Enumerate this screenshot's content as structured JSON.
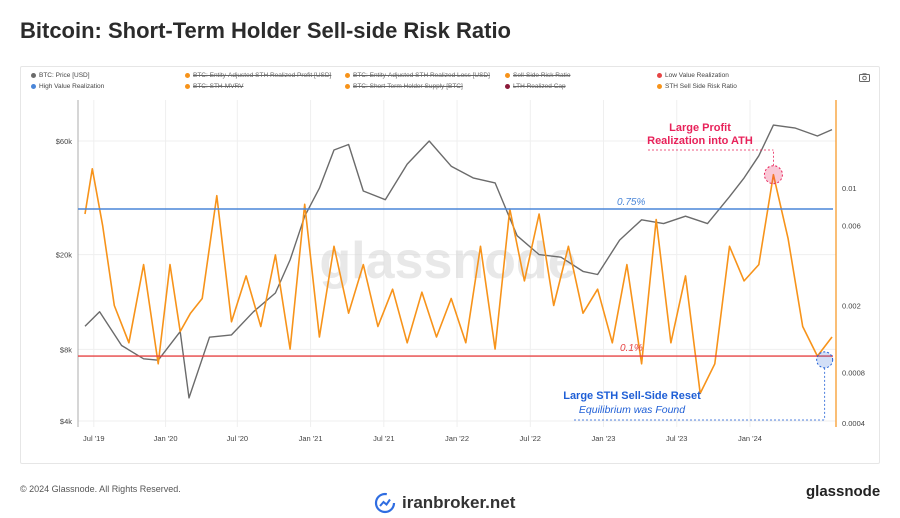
{
  "title": "Bitcoin: Short-Term Holder Sell-side Risk Ratio",
  "legend": [
    {
      "label": "BTC: Price [USD]",
      "color": "#6b6b6b",
      "struck": false
    },
    {
      "label": "BTC: Entity-Adjusted STH Realized Profit [USD]",
      "color": "#f7931a",
      "struck": true
    },
    {
      "label": "BTC: Entity-Adjusted STH Realized Loss [USD]",
      "color": "#f7931a",
      "struck": true
    },
    {
      "label": "Sell-Side Risk Ratio",
      "color": "#f7931a",
      "struck": true
    },
    {
      "label": "Low Value Realization",
      "color": "#e64545",
      "struck": false
    },
    {
      "label": "High Value Realization",
      "color": "#4a86d8",
      "struck": false
    },
    {
      "label": "BTC: STH-MVRV",
      "color": "#f7931a",
      "struck": true
    },
    {
      "label": "BTC: Short-Term Holder Supply [BTC]",
      "color": "#f7931a",
      "struck": true
    },
    {
      "label": "LTH Realized Cap",
      "color": "#8b1a3a",
      "struck": true
    },
    {
      "label": "STH Sell Side Risk Ratio",
      "color": "#f7931a",
      "struck": false
    }
  ],
  "camera_icon": "camera-icon",
  "colors": {
    "price": "#6b6b6b",
    "ratio": "#f7931a",
    "high": "#4a86d8",
    "low": "#e64545",
    "annot_red": "#e8225a",
    "annot_blue": "#1f5fd6"
  },
  "chart_data": {
    "type": "line",
    "x_ticks": [
      "Jul '19",
      "Jan '20",
      "Jul '20",
      "Jan '21",
      "Jul '21",
      "Jan '22",
      "Jul '22",
      "Jan '23",
      "Jul '23",
      "Jan '24"
    ],
    "y_left_ticks": [
      "$60k",
      "$20k",
      "$8k",
      "$4k"
    ],
    "y_left_scale": "log",
    "y_right_ticks": [
      "0.01",
      "0.006",
      "0.002",
      "0.0008",
      "0.0004"
    ],
    "y_right_scale": "log",
    "grid": true,
    "thresholds": [
      {
        "name": "High Value Realization",
        "label": "0.75%",
        "value": 0.0075
      },
      {
        "name": "Low Value Realization",
        "label": "0.1%",
        "value": 0.001
      }
    ],
    "series": [
      {
        "name": "BTC: Price [USD]",
        "axis": "left",
        "x": [
          2019.5,
          2019.6,
          2019.75,
          2019.9,
          2020.0,
          2020.15,
          2020.21,
          2020.35,
          2020.5,
          2020.65,
          2020.8,
          2020.9,
          2021.0,
          2021.1,
          2021.2,
          2021.3,
          2021.4,
          2021.55,
          2021.7,
          2021.85,
          2022.0,
          2022.15,
          2022.3,
          2022.45,
          2022.6,
          2022.75,
          2022.9,
          2023.0,
          2023.15,
          2023.3,
          2023.45,
          2023.6,
          2023.75,
          2023.9,
          2024.0,
          2024.1,
          2024.2,
          2024.35,
          2024.5,
          2024.6
        ],
        "y": [
          10000,
          11500,
          8300,
          7300,
          7200,
          9500,
          5000,
          9000,
          9200,
          11500,
          13800,
          19000,
          29000,
          38000,
          55000,
          58000,
          37000,
          34000,
          48000,
          60000,
          47000,
          42000,
          40000,
          24000,
          20000,
          19500,
          17000,
          16500,
          23000,
          28000,
          27000,
          29000,
          27000,
          35000,
          42000,
          52000,
          70000,
          68000,
          63000,
          67000
        ]
      },
      {
        "name": "STH Sell Side Risk Ratio",
        "axis": "right",
        "x": [
          2019.5,
          2019.55,
          2019.62,
          2019.7,
          2019.8,
          2019.9,
          2020.0,
          2020.08,
          2020.15,
          2020.22,
          2020.3,
          2020.4,
          2020.5,
          2020.6,
          2020.7,
          2020.8,
          2020.9,
          2021.0,
          2021.1,
          2021.2,
          2021.3,
          2021.4,
          2021.5,
          2021.6,
          2021.7,
          2021.8,
          2021.9,
          2022.0,
          2022.1,
          2022.2,
          2022.3,
          2022.4,
          2022.5,
          2022.6,
          2022.7,
          2022.8,
          2022.9,
          2023.0,
          2023.1,
          2023.2,
          2023.3,
          2023.4,
          2023.5,
          2023.6,
          2023.7,
          2023.8,
          2023.9,
          2024.0,
          2024.1,
          2024.2,
          2024.3,
          2024.4,
          2024.5,
          2024.6
        ],
        "y": [
          0.007,
          0.013,
          0.006,
          0.002,
          0.0012,
          0.0035,
          0.0009,
          0.0035,
          0.0014,
          0.0018,
          0.0022,
          0.009,
          0.0016,
          0.003,
          0.0015,
          0.004,
          0.0011,
          0.008,
          0.0013,
          0.0045,
          0.0018,
          0.0035,
          0.0015,
          0.0025,
          0.0012,
          0.0024,
          0.0013,
          0.0022,
          0.0012,
          0.0045,
          0.0011,
          0.0075,
          0.0028,
          0.007,
          0.002,
          0.0045,
          0.0018,
          0.0025,
          0.0012,
          0.0035,
          0.0009,
          0.0065,
          0.0012,
          0.003,
          0.0006,
          0.0009,
          0.0045,
          0.0028,
          0.0035,
          0.012,
          0.005,
          0.0015,
          0.001,
          0.0013
        ]
      }
    ],
    "annotations": [
      {
        "text": "Large Profit\nRealization into ATH",
        "color": "#e8225a"
      },
      {
        "text": "Large STH Sell-Side Reset",
        "color": "#1f5fd6"
      },
      {
        "text": "Equilibrium was Found",
        "color": "#1f5fd6"
      }
    ],
    "watermark": "glassnode"
  },
  "footer": {
    "copyright": "© 2024 Glassnode. All Rights Reserved.",
    "center_logo": "iranbroker.net",
    "right_logo": "glassnode"
  }
}
